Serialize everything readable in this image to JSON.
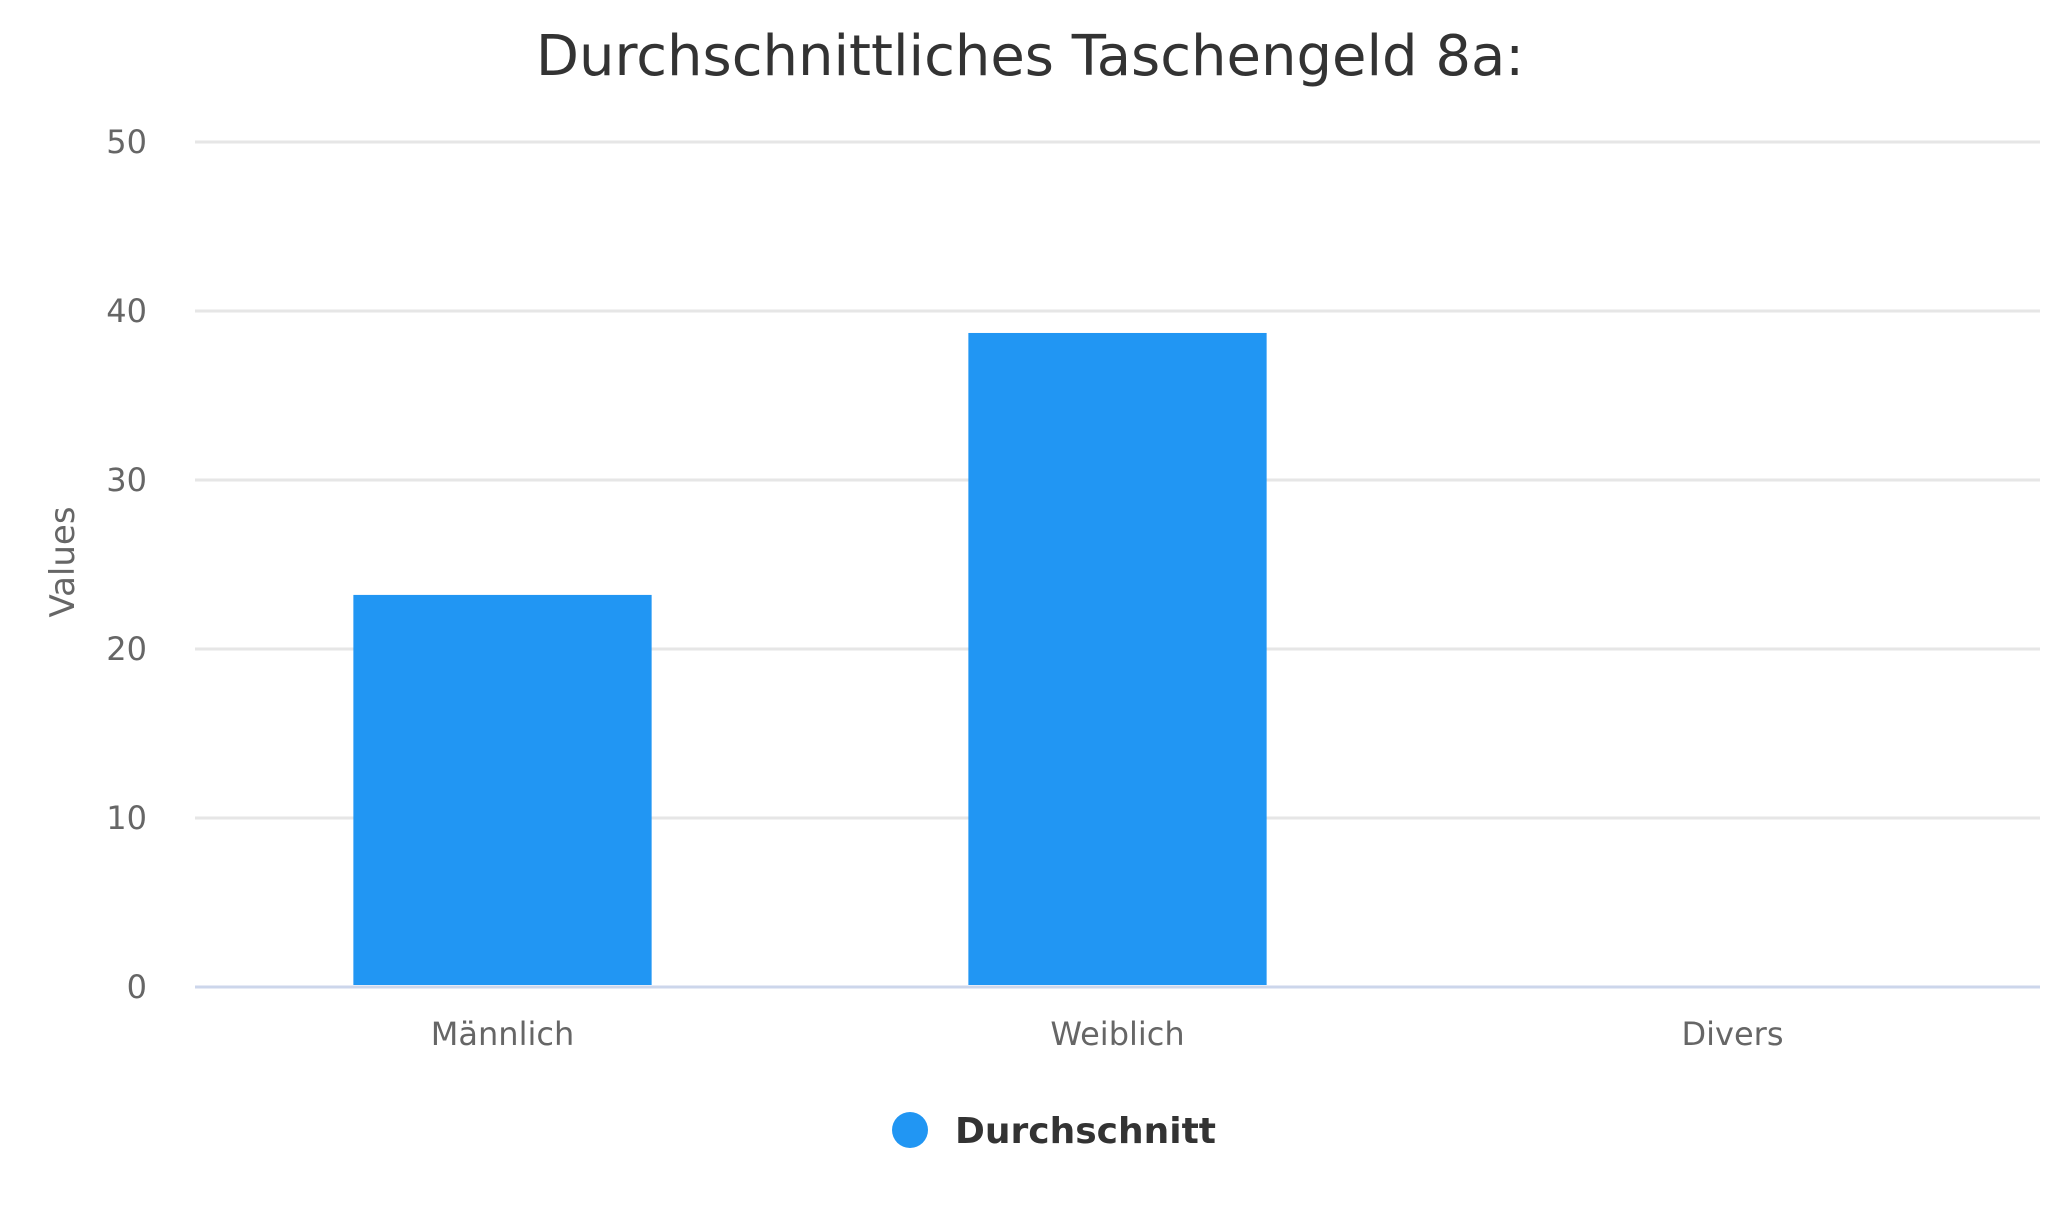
{
  "chart_data": {
    "type": "bar",
    "title": "Durchschnittliches Taschengeld 8a:",
    "xlabel": "",
    "ylabel": "Values",
    "categories": [
      "Männlich",
      "Weiblich",
      "Divers"
    ],
    "series": [
      {
        "name": "Durchschnitt",
        "values": [
          23.2,
          38.7,
          0
        ],
        "color": "#2196f3"
      }
    ],
    "ylim": [
      0,
      50
    ],
    "yticks": [
      0,
      10,
      20,
      30,
      40,
      50
    ],
    "grid": true,
    "legend_position": "bottom-center"
  },
  "colors": {
    "bar": "#2196f3",
    "grid": "#e6e6e6",
    "baseline": "#ccd6eb",
    "text": "#333333",
    "muted_text": "#666666"
  }
}
